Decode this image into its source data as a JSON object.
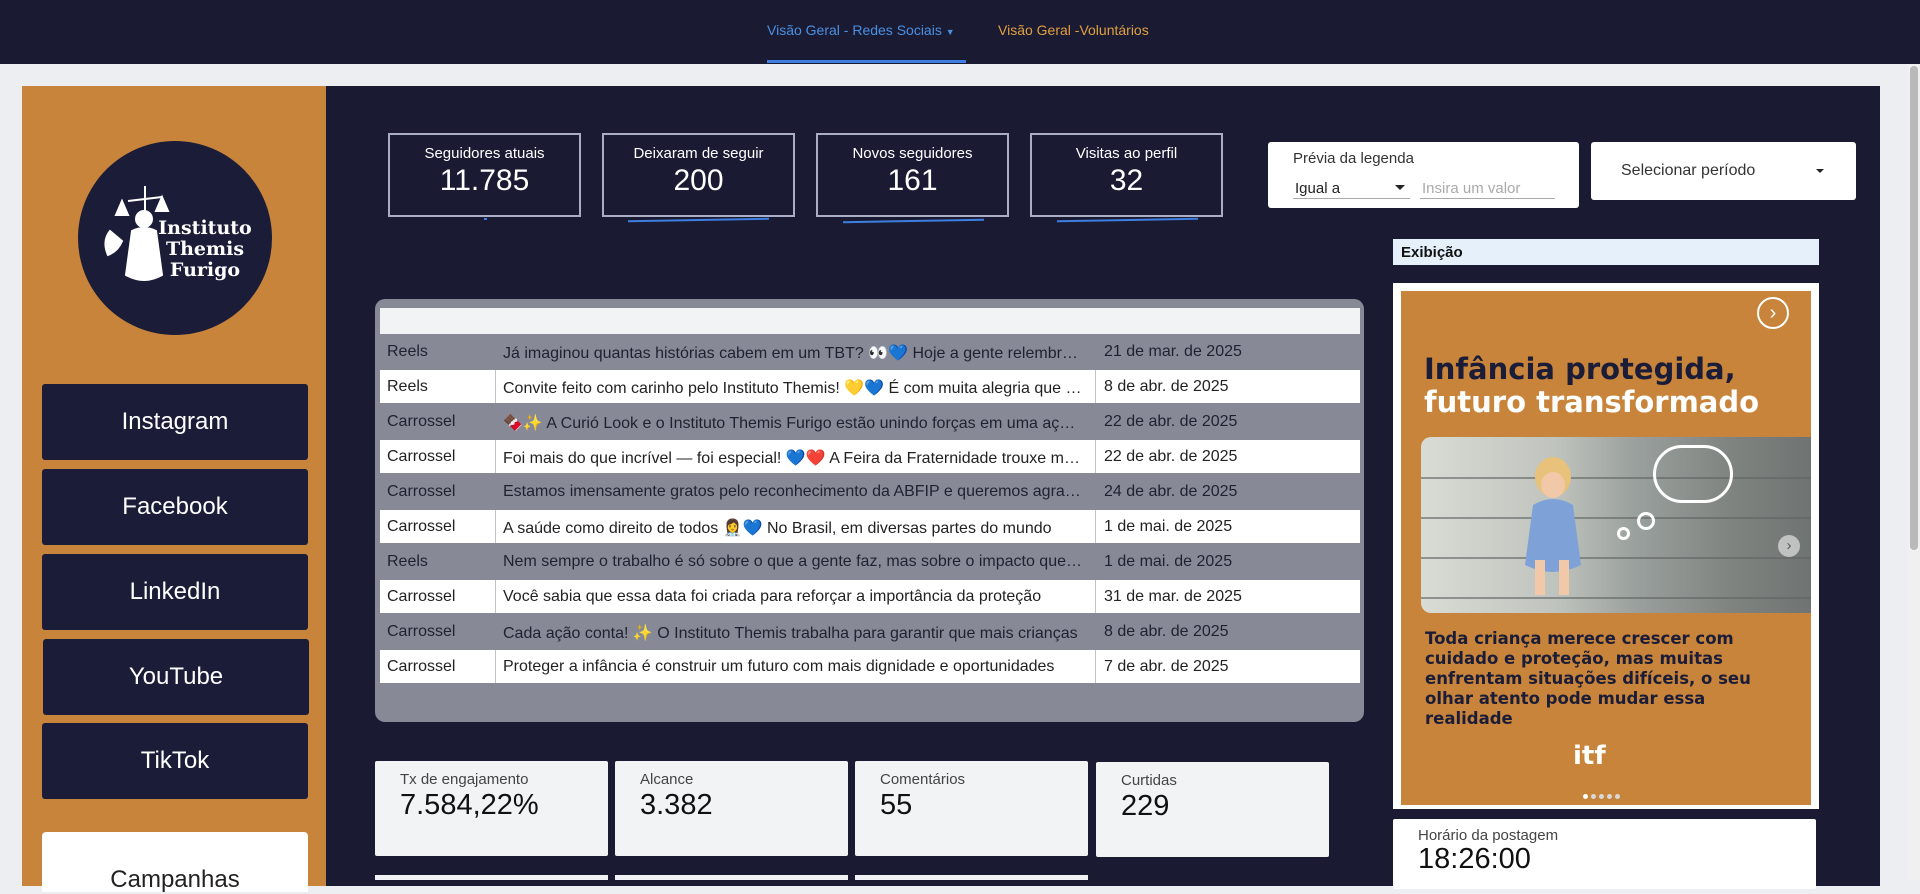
{
  "nav": {
    "tab1": "Visão Geral - Redes Sociais",
    "tab2": "Visão Geral -Voluntários",
    "active_color": "#4a90e2",
    "inactive_color": "#e0a040"
  },
  "brand": {
    "logo_text": "Instituto Themis Furigo"
  },
  "sidebar": {
    "items": [
      {
        "label": "Instagram"
      },
      {
        "label": "Facebook"
      },
      {
        "label": "LinkedIn"
      },
      {
        "label": "YouTube"
      },
      {
        "label": "TikTok"
      }
    ],
    "partial_item": "Campanhas"
  },
  "kpis": [
    {
      "label": "Seguidores atuais",
      "value": "11.785"
    },
    {
      "label": "Deixaram de seguir",
      "value": "200"
    },
    {
      "label": "Novos seguidores",
      "value": "161"
    },
    {
      "label": "Visitas ao perfil",
      "value": "32"
    }
  ],
  "filters": {
    "legenda_title": "Prévia da legenda",
    "legenda_operator": "Igual a",
    "legenda_placeholder": "Insira um valor",
    "periodo": "Selecionar período"
  },
  "posts": [
    {
      "type": "Reels",
      "caption": "Já imaginou quantas histórias cabem em um TBT? 👀💙 Hoje a gente relembra momentos especiais",
      "date": "21 de mar. de 2025"
    },
    {
      "type": "Reels",
      "caption": "Convite feito com carinho pelo Instituto Themis! 💛💙 É com muita alegria que convidamos você",
      "date": "8 de abr. de 2025"
    },
    {
      "type": "Carrossel",
      "caption": "🍫✨ A Curió Look e o Instituto Themis Furigo estão unindo forças em uma ação especial",
      "date": "22 de abr. de 2025"
    },
    {
      "type": "Carrossel",
      "caption": "Foi mais do que incrível — foi especial! 💙❤️ A Feira da Fraternidade trouxe muita alegria",
      "date": "22 de abr. de 2025"
    },
    {
      "type": "Carrossel",
      "caption": "Estamos imensamente gratos pelo reconhecimento da ABFIP e queremos agradecer",
      "date": "24 de abr. de 2025"
    },
    {
      "type": "Carrossel",
      "caption": "A saúde como direito de todos 👩‍⚕️💙 No Brasil, em diversas partes do mundo",
      "date": "1 de mai. de 2025"
    },
    {
      "type": "Reels",
      "caption": "Nem sempre o trabalho é só sobre o que a gente faz, mas sobre o impacto que causamos",
      "date": "1 de mai. de 2025"
    },
    {
      "type": "Carrossel",
      "caption": "Você sabia que essa data foi criada para reforçar a importância da proteção",
      "date": "31 de mar. de 2025"
    },
    {
      "type": "Carrossel",
      "caption": "Cada ação conta! ✨ O Instituto Themis trabalha para garantir que mais crianças",
      "date": "8 de abr. de 2025"
    },
    {
      "type": "Carrossel",
      "caption": "Proteger a infância é construir um futuro com mais dignidade e oportunidades",
      "date": "7 de abr. de 2025"
    }
  ],
  "metrics": [
    {
      "label": "Tx de engajamento",
      "value": "7.584,22%"
    },
    {
      "label": "Alcance",
      "value": "3.382"
    },
    {
      "label": "Comentários",
      "value": "55"
    },
    {
      "label": "Curtidas",
      "value": "229"
    }
  ],
  "exibicao": {
    "title": "Exibição",
    "slide_title_line1": "Infância protegida,",
    "slide_title_line2": "futuro transformado",
    "slide_text": "Toda criança merece crescer com cuidado e proteção, mas muitas enfrentam situações difíceis, o seu olhar atento pode mudar essa realidade",
    "slide_brand": "itf",
    "slide_count": 5,
    "active_slide": 1
  },
  "horario": {
    "label": "Horário da postagem",
    "value": "18:26:00"
  },
  "colors": {
    "navy": "#1a1b33",
    "orange": "#c8843a",
    "accent_blue": "#3d7ee0"
  }
}
